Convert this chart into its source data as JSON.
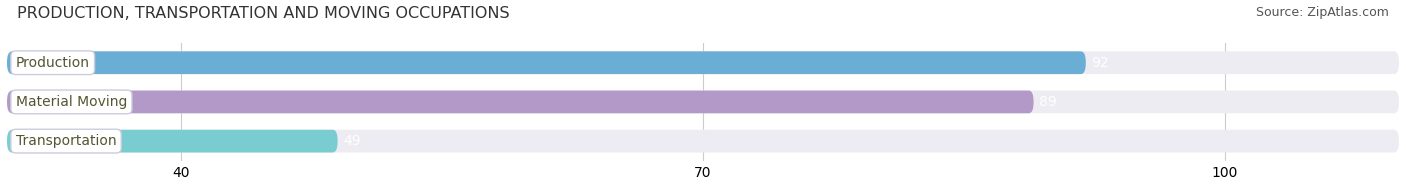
{
  "title": "PRODUCTION, TRANSPORTATION AND MOVING OCCUPATIONS",
  "source": "Source: ZipAtlas.com",
  "categories": [
    "Production",
    "Material Moving",
    "Transportation"
  ],
  "values": [
    92,
    89,
    49
  ],
  "bar_colors": [
    "#6aaed6",
    "#b399c8",
    "#79cdd0"
  ],
  "background_color": "#ffffff",
  "bar_background_color": "#ececf2",
  "xlim": [
    30,
    110
  ],
  "xticks": [
    40,
    70,
    100
  ],
  "bar_height": 0.58,
  "value_label_color": "#ffffff",
  "title_fontsize": 11.5,
  "source_fontsize": 9,
  "label_fontsize": 10,
  "tick_fontsize": 10,
  "label_pill_color": "#ffffff",
  "label_text_color": "#555533"
}
